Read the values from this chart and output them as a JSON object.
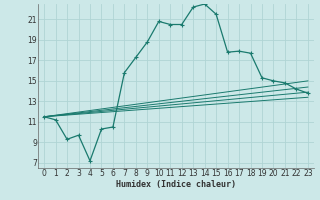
{
  "xlabel": "Humidex (Indice chaleur)",
  "bg_color": "#cce8e8",
  "grid_color": "#b0d4d4",
  "line_color": "#1a7a6e",
  "xlim": [
    -0.5,
    23.5
  ],
  "ylim": [
    6.5,
    22.5
  ],
  "yticks": [
    7,
    9,
    11,
    13,
    15,
    17,
    19,
    21
  ],
  "xticks": [
    0,
    1,
    2,
    3,
    4,
    5,
    6,
    7,
    8,
    9,
    10,
    11,
    12,
    13,
    14,
    15,
    16,
    17,
    18,
    19,
    20,
    21,
    22,
    23
  ],
  "main_x": [
    0,
    1,
    2,
    3,
    4,
    5,
    6,
    7,
    8,
    9,
    10,
    11,
    12,
    13,
    14,
    15,
    16,
    17,
    18,
    19,
    20,
    21,
    22,
    23
  ],
  "main_y": [
    11.5,
    11.2,
    9.3,
    9.7,
    7.2,
    10.3,
    10.5,
    15.8,
    17.3,
    18.8,
    20.8,
    20.5,
    20.5,
    22.2,
    22.5,
    21.5,
    17.8,
    17.9,
    17.7,
    15.3,
    15.0,
    14.8,
    14.2,
    13.8
  ],
  "straight_lines": [
    {
      "x": [
        0,
        23
      ],
      "y": [
        11.5,
        15.0
      ]
    },
    {
      "x": [
        0,
        23
      ],
      "y": [
        11.5,
        14.4
      ]
    },
    {
      "x": [
        0,
        23
      ],
      "y": [
        11.5,
        13.9
      ]
    },
    {
      "x": [
        0,
        23
      ],
      "y": [
        11.5,
        13.4
      ]
    }
  ]
}
